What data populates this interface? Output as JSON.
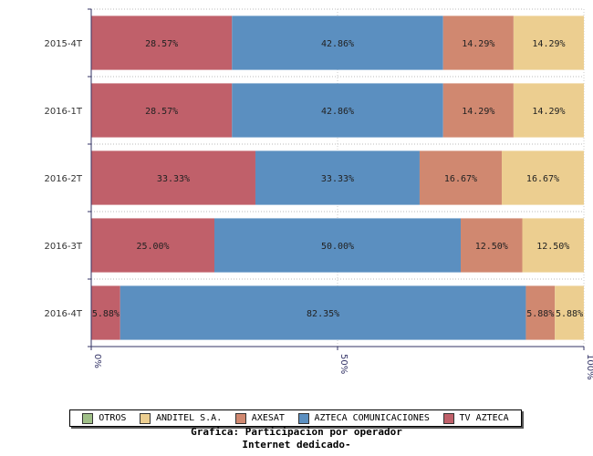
{
  "chart_data": {
    "type": "bar",
    "orientation": "horizontal",
    "stacked": true,
    "normalized": true,
    "categories": [
      "2015-4T",
      "2016-1T",
      "2016-2T",
      "2016-3T",
      "2016-4T"
    ],
    "series": [
      {
        "name": "TV AZTECA",
        "color": "#c0606a",
        "values": [
          28.57,
          28.57,
          33.33,
          25.0,
          5.88
        ],
        "labels": [
          "28.57%",
          "28.57%",
          "33.33%",
          "25.00%",
          "5.88%"
        ]
      },
      {
        "name": "AZTECA COMUNICACIONES",
        "color": "#5b8fc0",
        "values": [
          42.86,
          42.86,
          33.33,
          50.0,
          82.35
        ],
        "labels": [
          "42.86%",
          "42.86%",
          "33.33%",
          "50.00%",
          "82.35%"
        ]
      },
      {
        "name": "AXESAT",
        "color": "#d08870",
        "values": [
          14.29,
          14.29,
          16.67,
          12.5,
          5.88
        ],
        "labels": [
          "14.29%",
          "14.29%",
          "16.67%",
          "12.50%",
          "5.88%"
        ]
      },
      {
        "name": "ANDITEL S.A.",
        "color": "#ecce90",
        "values": [
          14.29,
          14.29,
          16.67,
          12.5,
          5.88
        ],
        "labels": [
          "14.29%",
          "14.29%",
          "16.67%",
          "12.50%",
          "5.88%"
        ]
      },
      {
        "name": "OTROS",
        "color": "#a0c088",
        "values": [
          0,
          0,
          0,
          0,
          0
        ],
        "labels": [
          "",
          "",
          "",
          "",
          ""
        ]
      }
    ],
    "xlim": [
      0,
      100
    ],
    "x_ticks": [
      "0%",
      "50%",
      "100%"
    ],
    "grid": true,
    "legend_position": "bottom",
    "legend_order": [
      "OTROS",
      "ANDITEL S.A.",
      "AXESAT",
      "AZTECA COMUNICACIONES",
      "TV AZTECA"
    ],
    "title_lines": [
      "Grafica: Participacion por operador",
      "Internet dedicado-"
    ]
  }
}
